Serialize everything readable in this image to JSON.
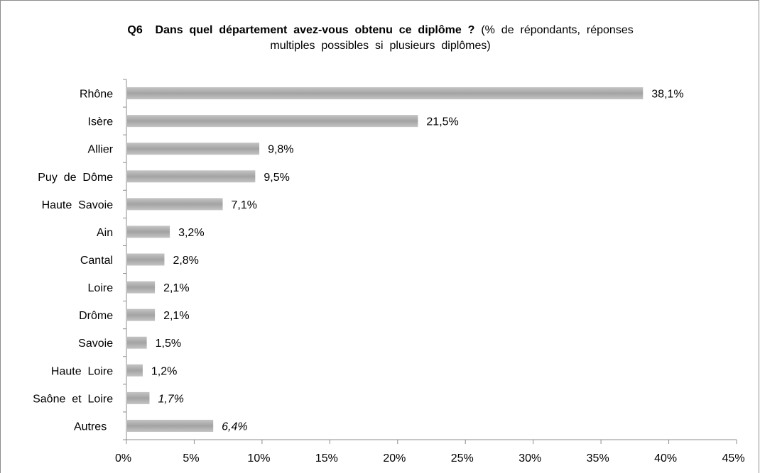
{
  "chart_data": {
    "type": "bar",
    "orientation": "horizontal",
    "title_bold": "Q6  Dans quel département avez-vous obtenu ce diplôme ? ",
    "title_normal": "(% de répondants, réponses ",
    "title_line2": "multiples possibles si plusieurs diplômes) ",
    "categories": [
      "Rhône ",
      "Isère ",
      "Allier ",
      "Puy de Dôme ",
      "Haute Savoie ",
      "Ain ",
      "Cantal ",
      "Loire ",
      "Drôme ",
      "Savoie ",
      "Haute Loire ",
      "Saône et Loire ",
      "Autres  "
    ],
    "values": [
      38.1,
      21.5,
      9.8,
      9.5,
      7.1,
      3.2,
      2.8,
      2.1,
      2.1,
      1.5,
      1.2,
      1.7,
      6.4
    ],
    "data_labels": [
      "38,1% ",
      "21,5% ",
      "9,8% ",
      "9,5% ",
      "7,1% ",
      "3,2% ",
      "2,8% ",
      "2,1% ",
      "2,1% ",
      "1,5% ",
      "1,2% ",
      "1,7% ",
      "6,4% "
    ],
    "italic_labels": [
      false,
      false,
      false,
      false,
      false,
      false,
      false,
      false,
      false,
      false,
      false,
      true,
      true
    ],
    "x_ticks": [
      0,
      5,
      10,
      15,
      20,
      25,
      30,
      35,
      40,
      45
    ],
    "x_tick_labels": [
      "0% ",
      "5% ",
      "10% ",
      "15% ",
      "20% ",
      "25% ",
      "30% ",
      "35% ",
      "40% ",
      "45% "
    ],
    "xlim": [
      0,
      45
    ],
    "grid": false,
    "legend": "none",
    "bar_color": "#a6a6a6",
    "axis_color": "#8c8c8c"
  }
}
